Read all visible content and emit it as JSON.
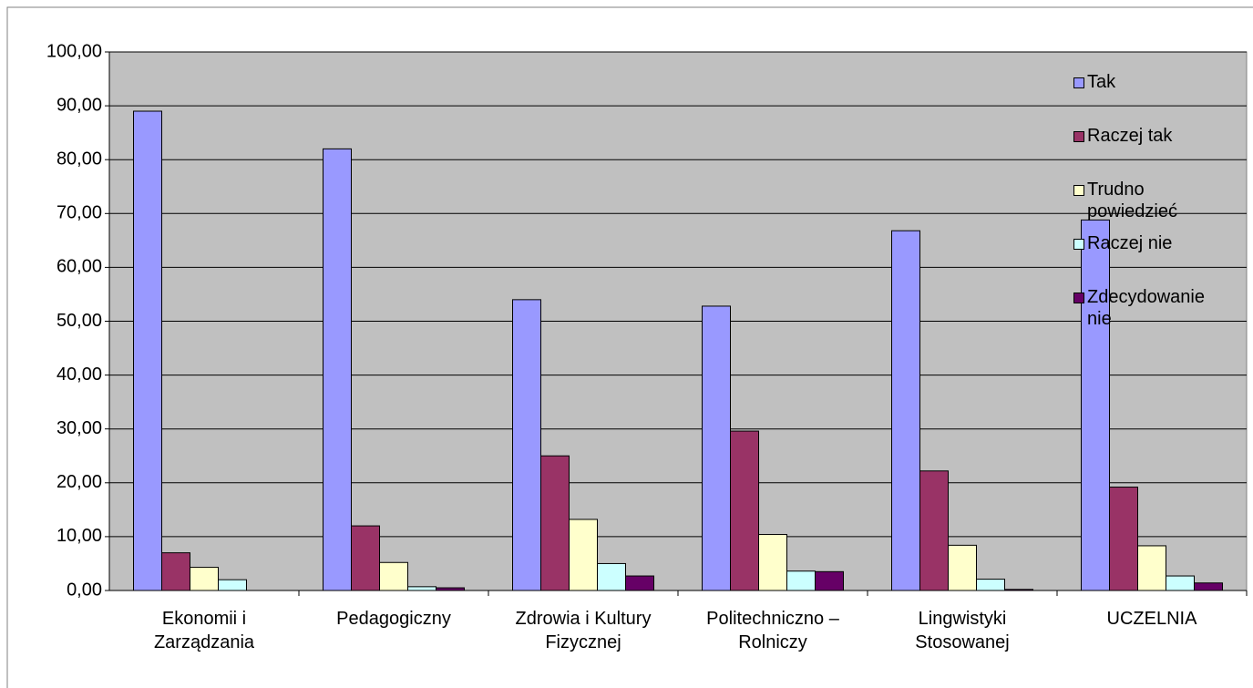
{
  "chart_data": {
    "type": "bar",
    "categories": [
      "Ekonomii i Zarządzania",
      "Pedagogiczny",
      "Zdrowia i Kultury Fizycznej",
      "Politechniczno – Rolniczy",
      "Lingwistyki Stosowanej",
      "UCZELNIA"
    ],
    "series": [
      {
        "name": "Tak",
        "color": "#9999ff",
        "values": [
          89,
          82,
          54,
          52.8,
          66.8,
          68.8
        ]
      },
      {
        "name": "Raczej tak",
        "color": "#993366",
        "values": [
          7,
          12,
          25,
          29.6,
          22.2,
          19.2
        ]
      },
      {
        "name": "Trudno powiedzieć",
        "color": "#ffffcc",
        "values": [
          4.3,
          5.2,
          13.2,
          10.4,
          8.4,
          8.3
        ]
      },
      {
        "name": "Raczej nie",
        "color": "#ccffff",
        "values": [
          2,
          0.7,
          5,
          3.6,
          2.1,
          2.7
        ]
      },
      {
        "name": "Zdecydowanie nie",
        "color": "#660066",
        "values": [
          0,
          0.5,
          2.7,
          3.5,
          0.2,
          1.4
        ]
      }
    ],
    "ylim": [
      0,
      100
    ],
    "yticks": [
      {
        "value": 0,
        "label": "0,00"
      },
      {
        "value": 10,
        "label": "10,00"
      },
      {
        "value": 20,
        "label": "20,00"
      },
      {
        "value": 30,
        "label": "30,00"
      },
      {
        "value": 40,
        "label": "40,00"
      },
      {
        "value": 50,
        "label": "50,00"
      },
      {
        "value": 60,
        "label": "60,00"
      },
      {
        "value": 70,
        "label": "70,00"
      },
      {
        "value": 80,
        "label": "80,00"
      },
      {
        "value": 90,
        "label": "90,00"
      },
      {
        "value": 100,
        "label": "100,00"
      }
    ],
    "grid": true,
    "plot_background": "#c0c0c0",
    "legend": "right"
  }
}
